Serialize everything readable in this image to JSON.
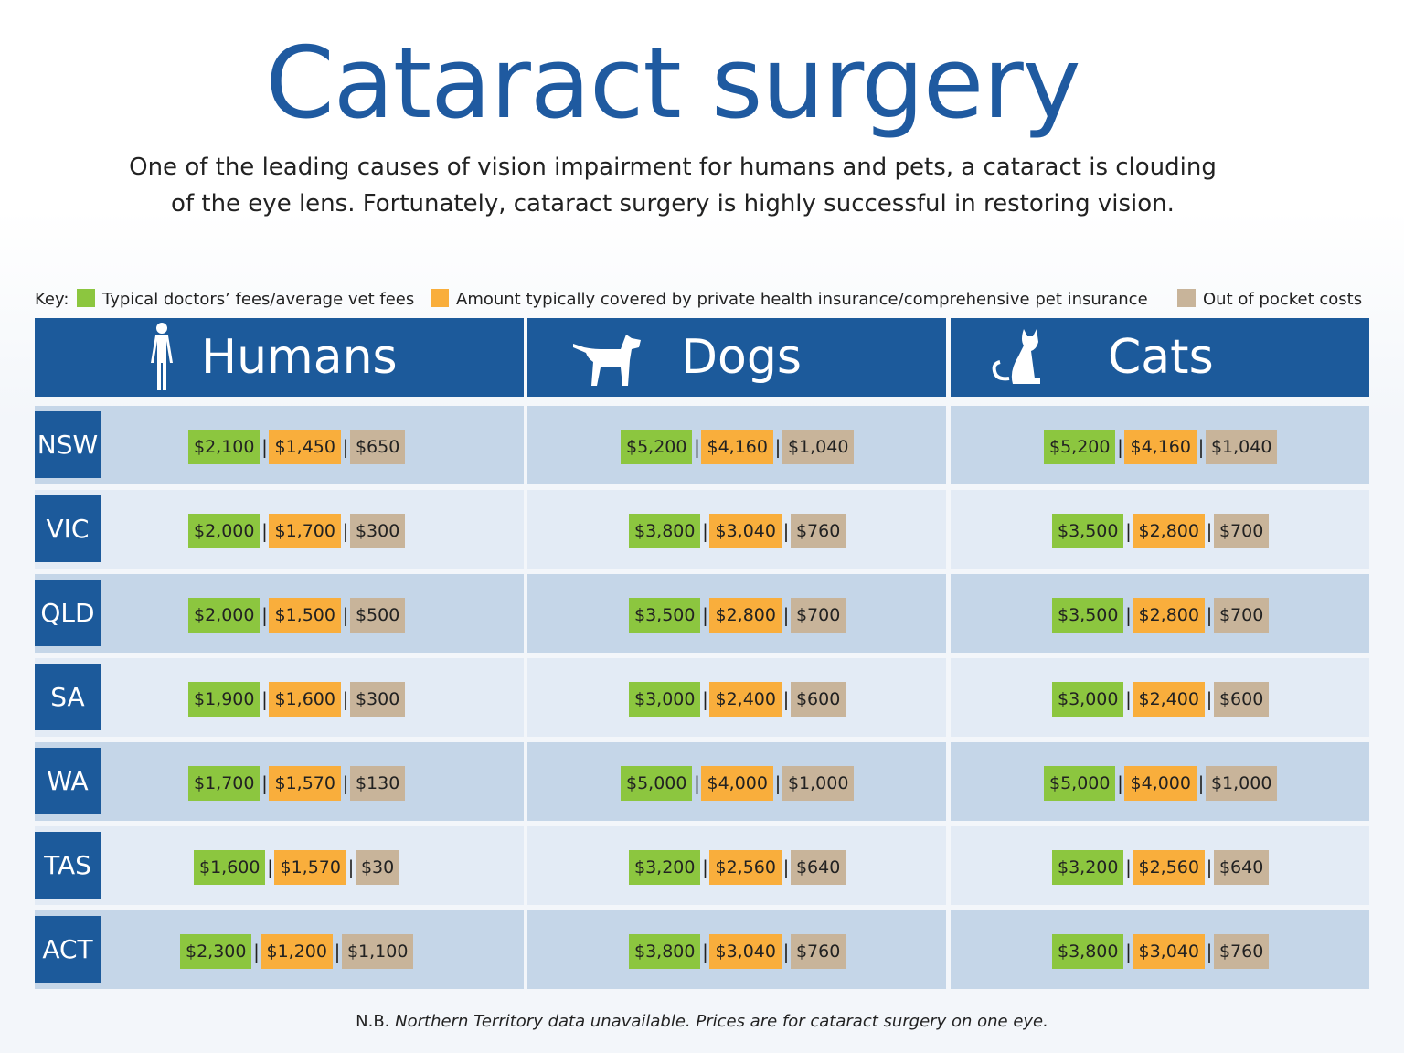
{
  "title": "Cataract surgery",
  "subtitle": [
    "One of the leading causes of vision impairment for humans and pets, a cataract is clouding",
    "of the eye lens. Fortunately, cataract surgery is highly successful in restoring vision."
  ],
  "key": {
    "label": "Key:",
    "items": [
      {
        "label": "Typical doctors’ fees/average vet fees",
        "color": "#8cc63f"
      },
      {
        "label": "Amount typically covered by private health insurance/comprehensive pet insurance",
        "color": "#f9ae3c"
      },
      {
        "label": "Out of pocket costs",
        "color": "#c8b49a"
      }
    ]
  },
  "colors": {
    "header_blue": "#1c5a9b",
    "band_dark": "#c5d6e8",
    "band_light": "#e3ebf5",
    "title_blue": "#1f5aa0"
  },
  "chart_data": {
    "type": "table",
    "title": "Cataract surgery",
    "columns": [
      "Humans",
      "Dogs",
      "Cats"
    ],
    "column_icons": [
      "human-figure-icon",
      "dog-icon",
      "cat-icon"
    ],
    "cost_parts": [
      "Typical doctors’ fees/average vet fees",
      "Amount typically covered by private health insurance/comprehensive pet insurance",
      "Out of pocket costs"
    ],
    "rows": [
      {
        "state": "NSW",
        "cells": [
          [
            "$2,100",
            "$1,450",
            "$650"
          ],
          [
            "$5,200",
            "$4,160",
            "$1,040"
          ],
          [
            "$5,200",
            "$4,160",
            "$1,040"
          ]
        ]
      },
      {
        "state": "VIC",
        "cells": [
          [
            "$2,000",
            "$1,700",
            "$300"
          ],
          [
            "$3,800",
            "$3,040",
            "$760"
          ],
          [
            "$3,500",
            "$2,800",
            "$700"
          ]
        ]
      },
      {
        "state": "QLD",
        "cells": [
          [
            "$2,000",
            "$1,500",
            "$500"
          ],
          [
            "$3,500",
            "$2,800",
            "$700"
          ],
          [
            "$3,500",
            "$2,800",
            "$700"
          ]
        ]
      },
      {
        "state": "SA",
        "cells": [
          [
            "$1,900",
            "$1,600",
            "$300"
          ],
          [
            "$3,000",
            "$2,400",
            "$600"
          ],
          [
            "$3,000",
            "$2,400",
            "$600"
          ]
        ]
      },
      {
        "state": "WA",
        "cells": [
          [
            "$1,700",
            "$1,570",
            "$130"
          ],
          [
            "$5,000",
            "$4,000",
            "$1,000"
          ],
          [
            "$5,000",
            "$4,000",
            "$1,000"
          ]
        ]
      },
      {
        "state": "TAS",
        "cells": [
          [
            "$1,600",
            "$1,570",
            "$30"
          ],
          [
            "$3,200",
            "$2,560",
            "$640"
          ],
          [
            "$3,200",
            "$2,560",
            "$640"
          ]
        ]
      },
      {
        "state": "ACT",
        "cells": [
          [
            "$2,300",
            "$1,200",
            "$1,100"
          ],
          [
            "$3,800",
            "$3,040",
            "$760"
          ],
          [
            "$3,800",
            "$3,040",
            "$760"
          ]
        ]
      }
    ],
    "separator": "|"
  },
  "footnote": {
    "prefix": "N.B.",
    "body": "Northern Territory data unavailable. Prices are for cataract surgery on one eye."
  }
}
